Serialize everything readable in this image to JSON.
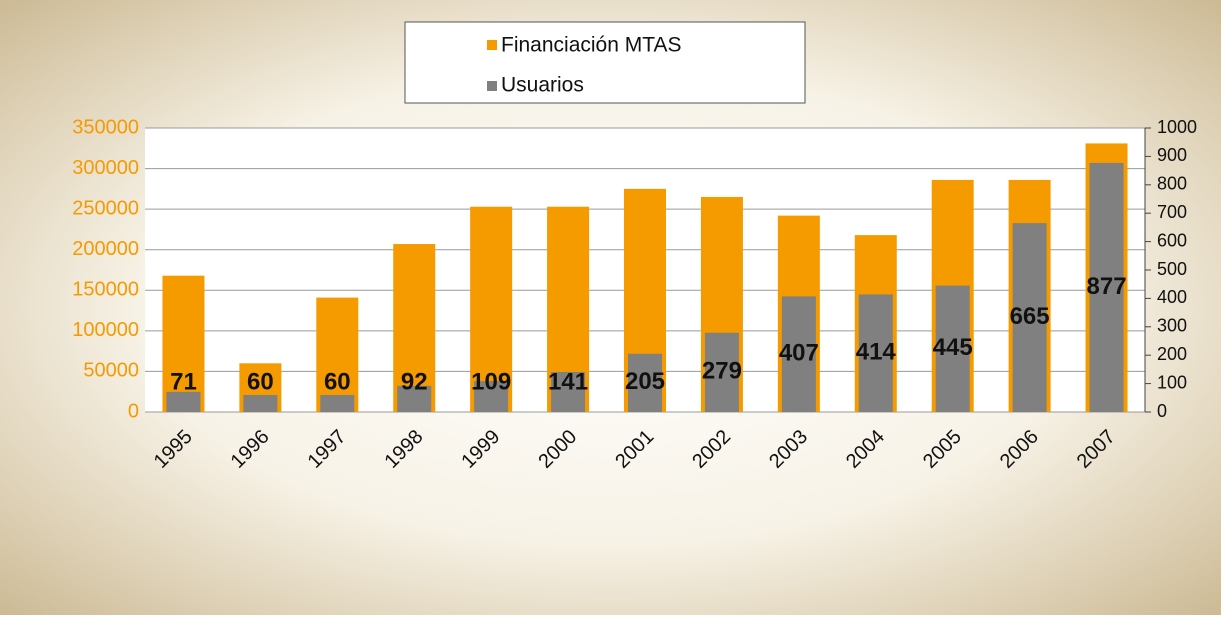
{
  "chart_data": {
    "type": "bar",
    "categories": [
      "1995",
      "1996",
      "1997",
      "1998",
      "1999",
      "2000",
      "2001",
      "2002",
      "2003",
      "2004",
      "2005",
      "2006",
      "2007"
    ],
    "series": [
      {
        "name": "Financiación MTAS",
        "color": "#f59b00",
        "values": [
          168000,
          60000,
          141000,
          207000,
          253000,
          253000,
          275000,
          265000,
          242000,
          218000,
          286000,
          286000,
          331000
        ]
      },
      {
        "name": "Usuarios",
        "color": "#808080",
        "axis": "y2",
        "values": [
          71,
          60,
          60,
          92,
          109,
          141,
          205,
          279,
          407,
          414,
          445,
          665,
          877
        ]
      }
    ],
    "ylim": [
      0,
      350000
    ],
    "yticks": [
      0,
      50000,
      100000,
      150000,
      200000,
      250000,
      300000,
      350000
    ],
    "y2lim": [
      0,
      1000
    ],
    "y2ticks": [
      0,
      100,
      200,
      300,
      400,
      500,
      600,
      700,
      800,
      900,
      1000
    ],
    "grid": true,
    "legend": "top"
  }
}
